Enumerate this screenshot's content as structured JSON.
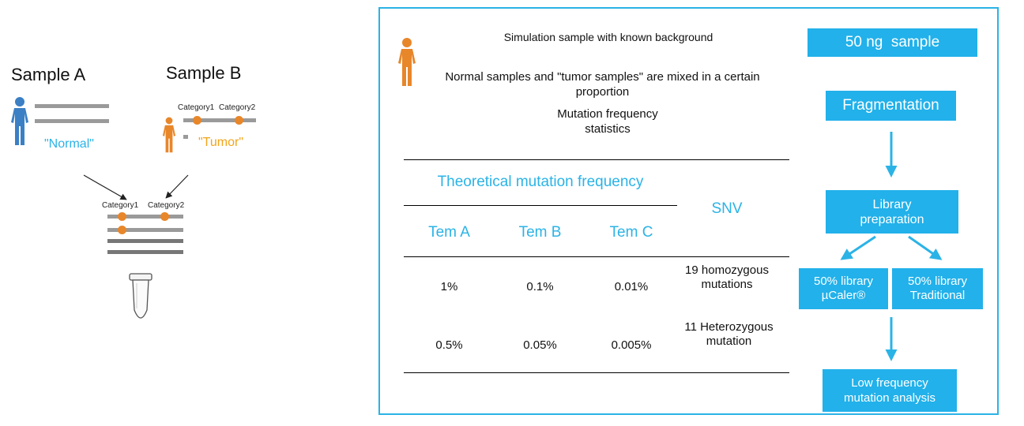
{
  "left": {
    "sample_a": "Sample A",
    "sample_b": "Sample B",
    "normal_label": "\"Normal\"",
    "tumor_label": "\"Tumor\"",
    "category1": "Category1",
    "category2": "Category2"
  },
  "panel": {
    "title": "Simulation sample with known background",
    "mix_text": "Normal samples and \"tumor samples\" are mixed in a certain proportion",
    "stats_text": "Mutation frequency statistics",
    "table": {
      "group_header": "Theoretical mutation frequency",
      "snv_header": "SNV",
      "columns": [
        "Tem A",
        "Tem B",
        "Tem C"
      ],
      "rows": [
        {
          "a": "1%",
          "b": "0.1%",
          "c": "0.01%",
          "snv": "19 homozygous mutations"
        },
        {
          "a": "0.5%",
          "b": "0.05%",
          "c": "0.005%",
          "snv": "11 Heterozygous mutation"
        }
      ]
    }
  },
  "flow": {
    "sample": "50 ng  sample",
    "fragmentation": "Fragmentation",
    "library_prep": "Library preparation",
    "library_a": "50% library µCaler®",
    "library_b": "50% library Traditional",
    "analysis": "Low frequency mutation analysis"
  },
  "colors": {
    "accent_blue": "#22b1ea",
    "tumor_orange": "#f2a51a",
    "figure_orange": "#e8862a",
    "figure_blue": "#3b7fc4"
  }
}
